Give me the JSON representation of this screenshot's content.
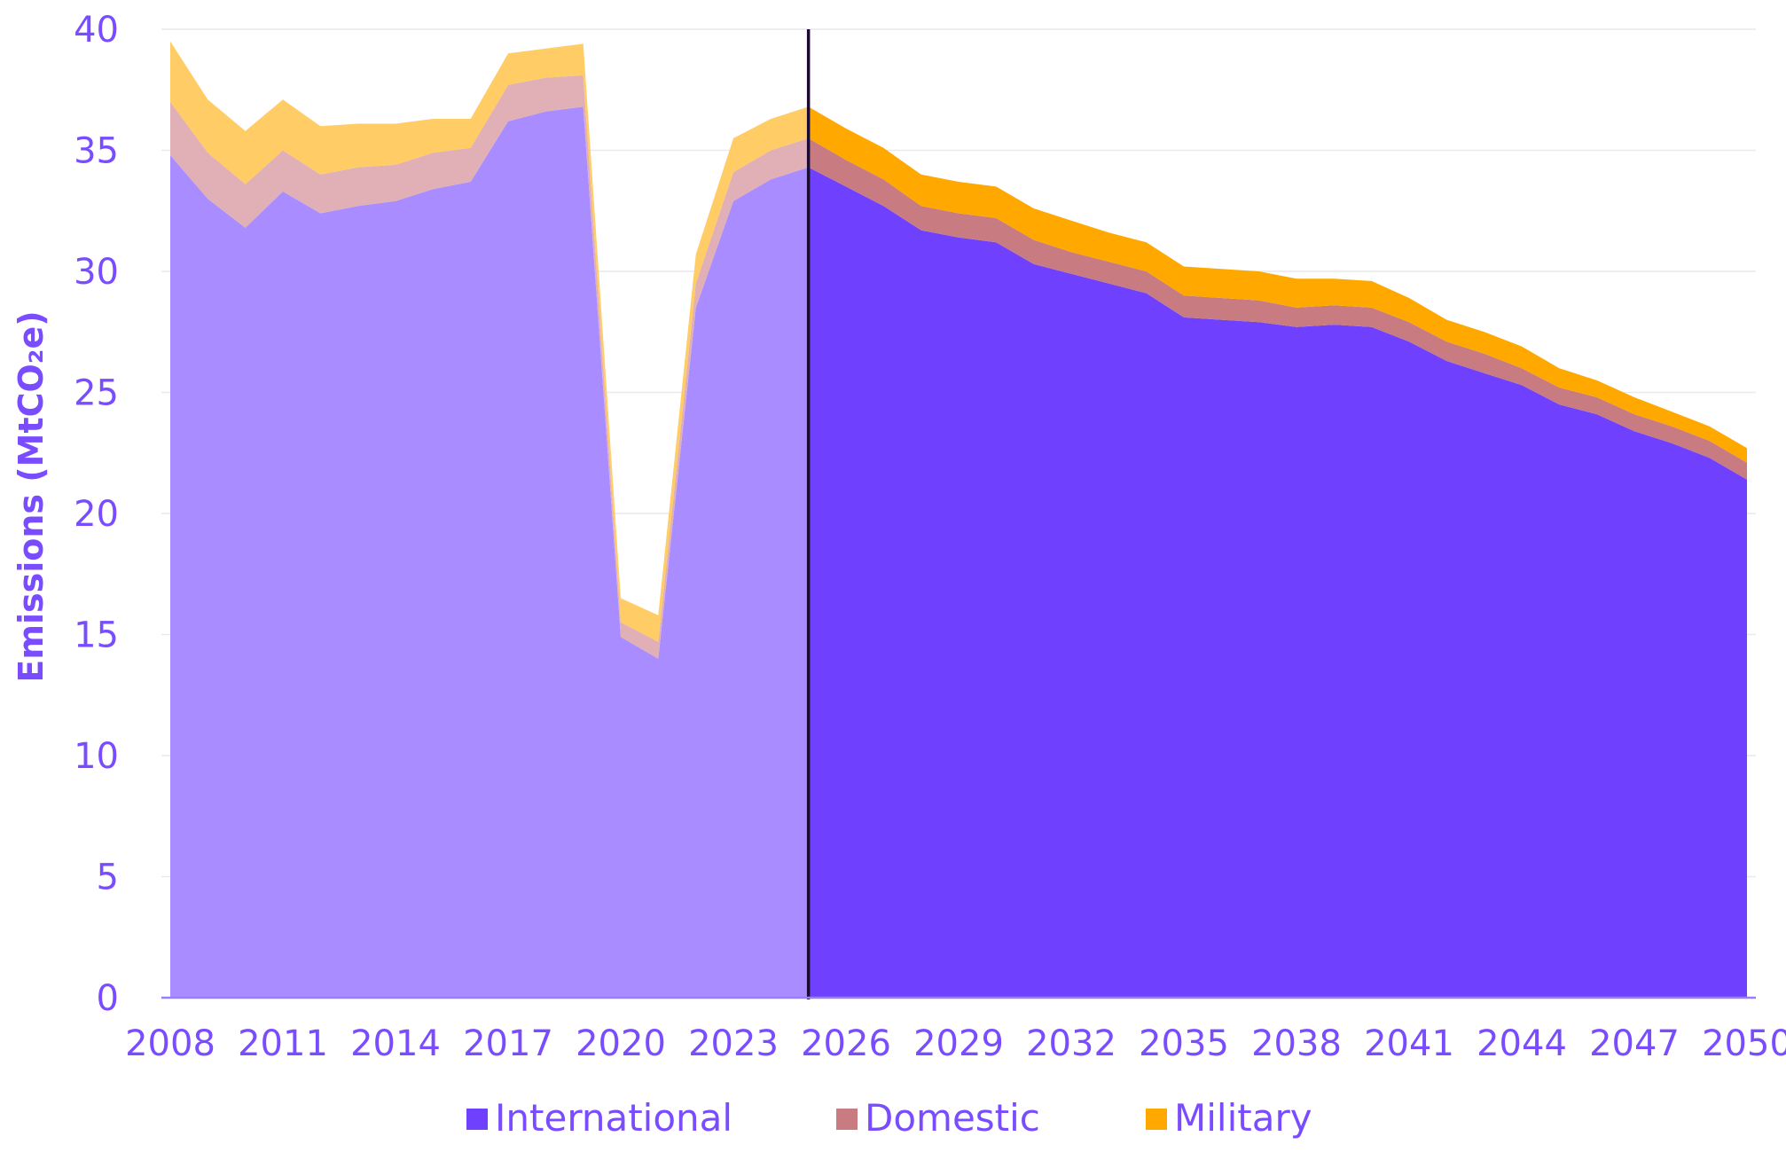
{
  "chart_data": {
    "type": "area",
    "stacked": true,
    "ylabel": "Emissions (MtCO₂e)",
    "ylim": [
      0,
      40
    ],
    "yticks": [
      "0",
      "5",
      "10",
      "15",
      "20",
      "25",
      "30",
      "35",
      "40"
    ],
    "xticks": [
      "2008",
      "2011",
      "2014",
      "2017",
      "2020",
      "2023",
      "2026",
      "2029",
      "2032",
      "2035",
      "2038",
      "2041",
      "2044",
      "2047",
      "2050"
    ],
    "grid": true,
    "legend_position": "bottom",
    "divider_year": 2025,
    "x": [
      2008,
      2009,
      2010,
      2011,
      2012,
      2013,
      2014,
      2015,
      2016,
      2017,
      2018,
      2019,
      2020,
      2021,
      2022,
      2023,
      2024,
      2025,
      2026,
      2027,
      2028,
      2029,
      2030,
      2031,
      2032,
      2033,
      2034,
      2035,
      2036,
      2037,
      2038,
      2039,
      2040,
      2041,
      2042,
      2043,
      2044,
      2045,
      2046,
      2047,
      2048,
      2049,
      2050
    ],
    "series": [
      {
        "name": "International",
        "color": "#7040ff",
        "historic_color": "#a98cff",
        "values": [
          34.8,
          33.0,
          31.8,
          33.3,
          32.4,
          32.7,
          32.9,
          33.4,
          33.7,
          36.2,
          36.6,
          36.8,
          14.9,
          14.0,
          28.5,
          32.9,
          33.8,
          34.3,
          33.5,
          32.7,
          31.7,
          31.4,
          31.2,
          30.3,
          29.9,
          29.5,
          29.1,
          28.1,
          28.0,
          27.9,
          27.7,
          27.8,
          27.7,
          27.1,
          26.3,
          25.8,
          25.3,
          24.5,
          24.1,
          23.4,
          22.9,
          22.3,
          21.4
        ]
      },
      {
        "name": "Domestic",
        "color": "#c97b82",
        "historic_color": "#e0b0b6",
        "values": [
          2.2,
          1.9,
          1.8,
          1.7,
          1.6,
          1.6,
          1.5,
          1.5,
          1.4,
          1.5,
          1.4,
          1.3,
          0.6,
          0.7,
          1.0,
          1.2,
          1.2,
          1.2,
          1.1,
          1.1,
          1.0,
          1.0,
          1.0,
          1.0,
          0.9,
          0.9,
          0.9,
          0.9,
          0.9,
          0.9,
          0.8,
          0.8,
          0.8,
          0.8,
          0.8,
          0.8,
          0.7,
          0.7,
          0.7,
          0.7,
          0.7,
          0.7,
          0.7
        ]
      },
      {
        "name": "Military",
        "color": "#ffa800",
        "historic_color": "#ffcc66",
        "values": [
          2.5,
          2.2,
          2.2,
          2.1,
          2.0,
          1.8,
          1.7,
          1.4,
          1.2,
          1.3,
          1.2,
          1.3,
          1.0,
          1.1,
          1.2,
          1.4,
          1.3,
          1.3,
          1.3,
          1.3,
          1.3,
          1.3,
          1.3,
          1.3,
          1.3,
          1.2,
          1.2,
          1.2,
          1.2,
          1.2,
          1.2,
          1.1,
          1.1,
          1.0,
          0.9,
          0.9,
          0.9,
          0.8,
          0.7,
          0.7,
          0.6,
          0.6,
          0.6
        ]
      }
    ],
    "legend": [
      "International",
      "Domestic",
      "Military"
    ]
  }
}
